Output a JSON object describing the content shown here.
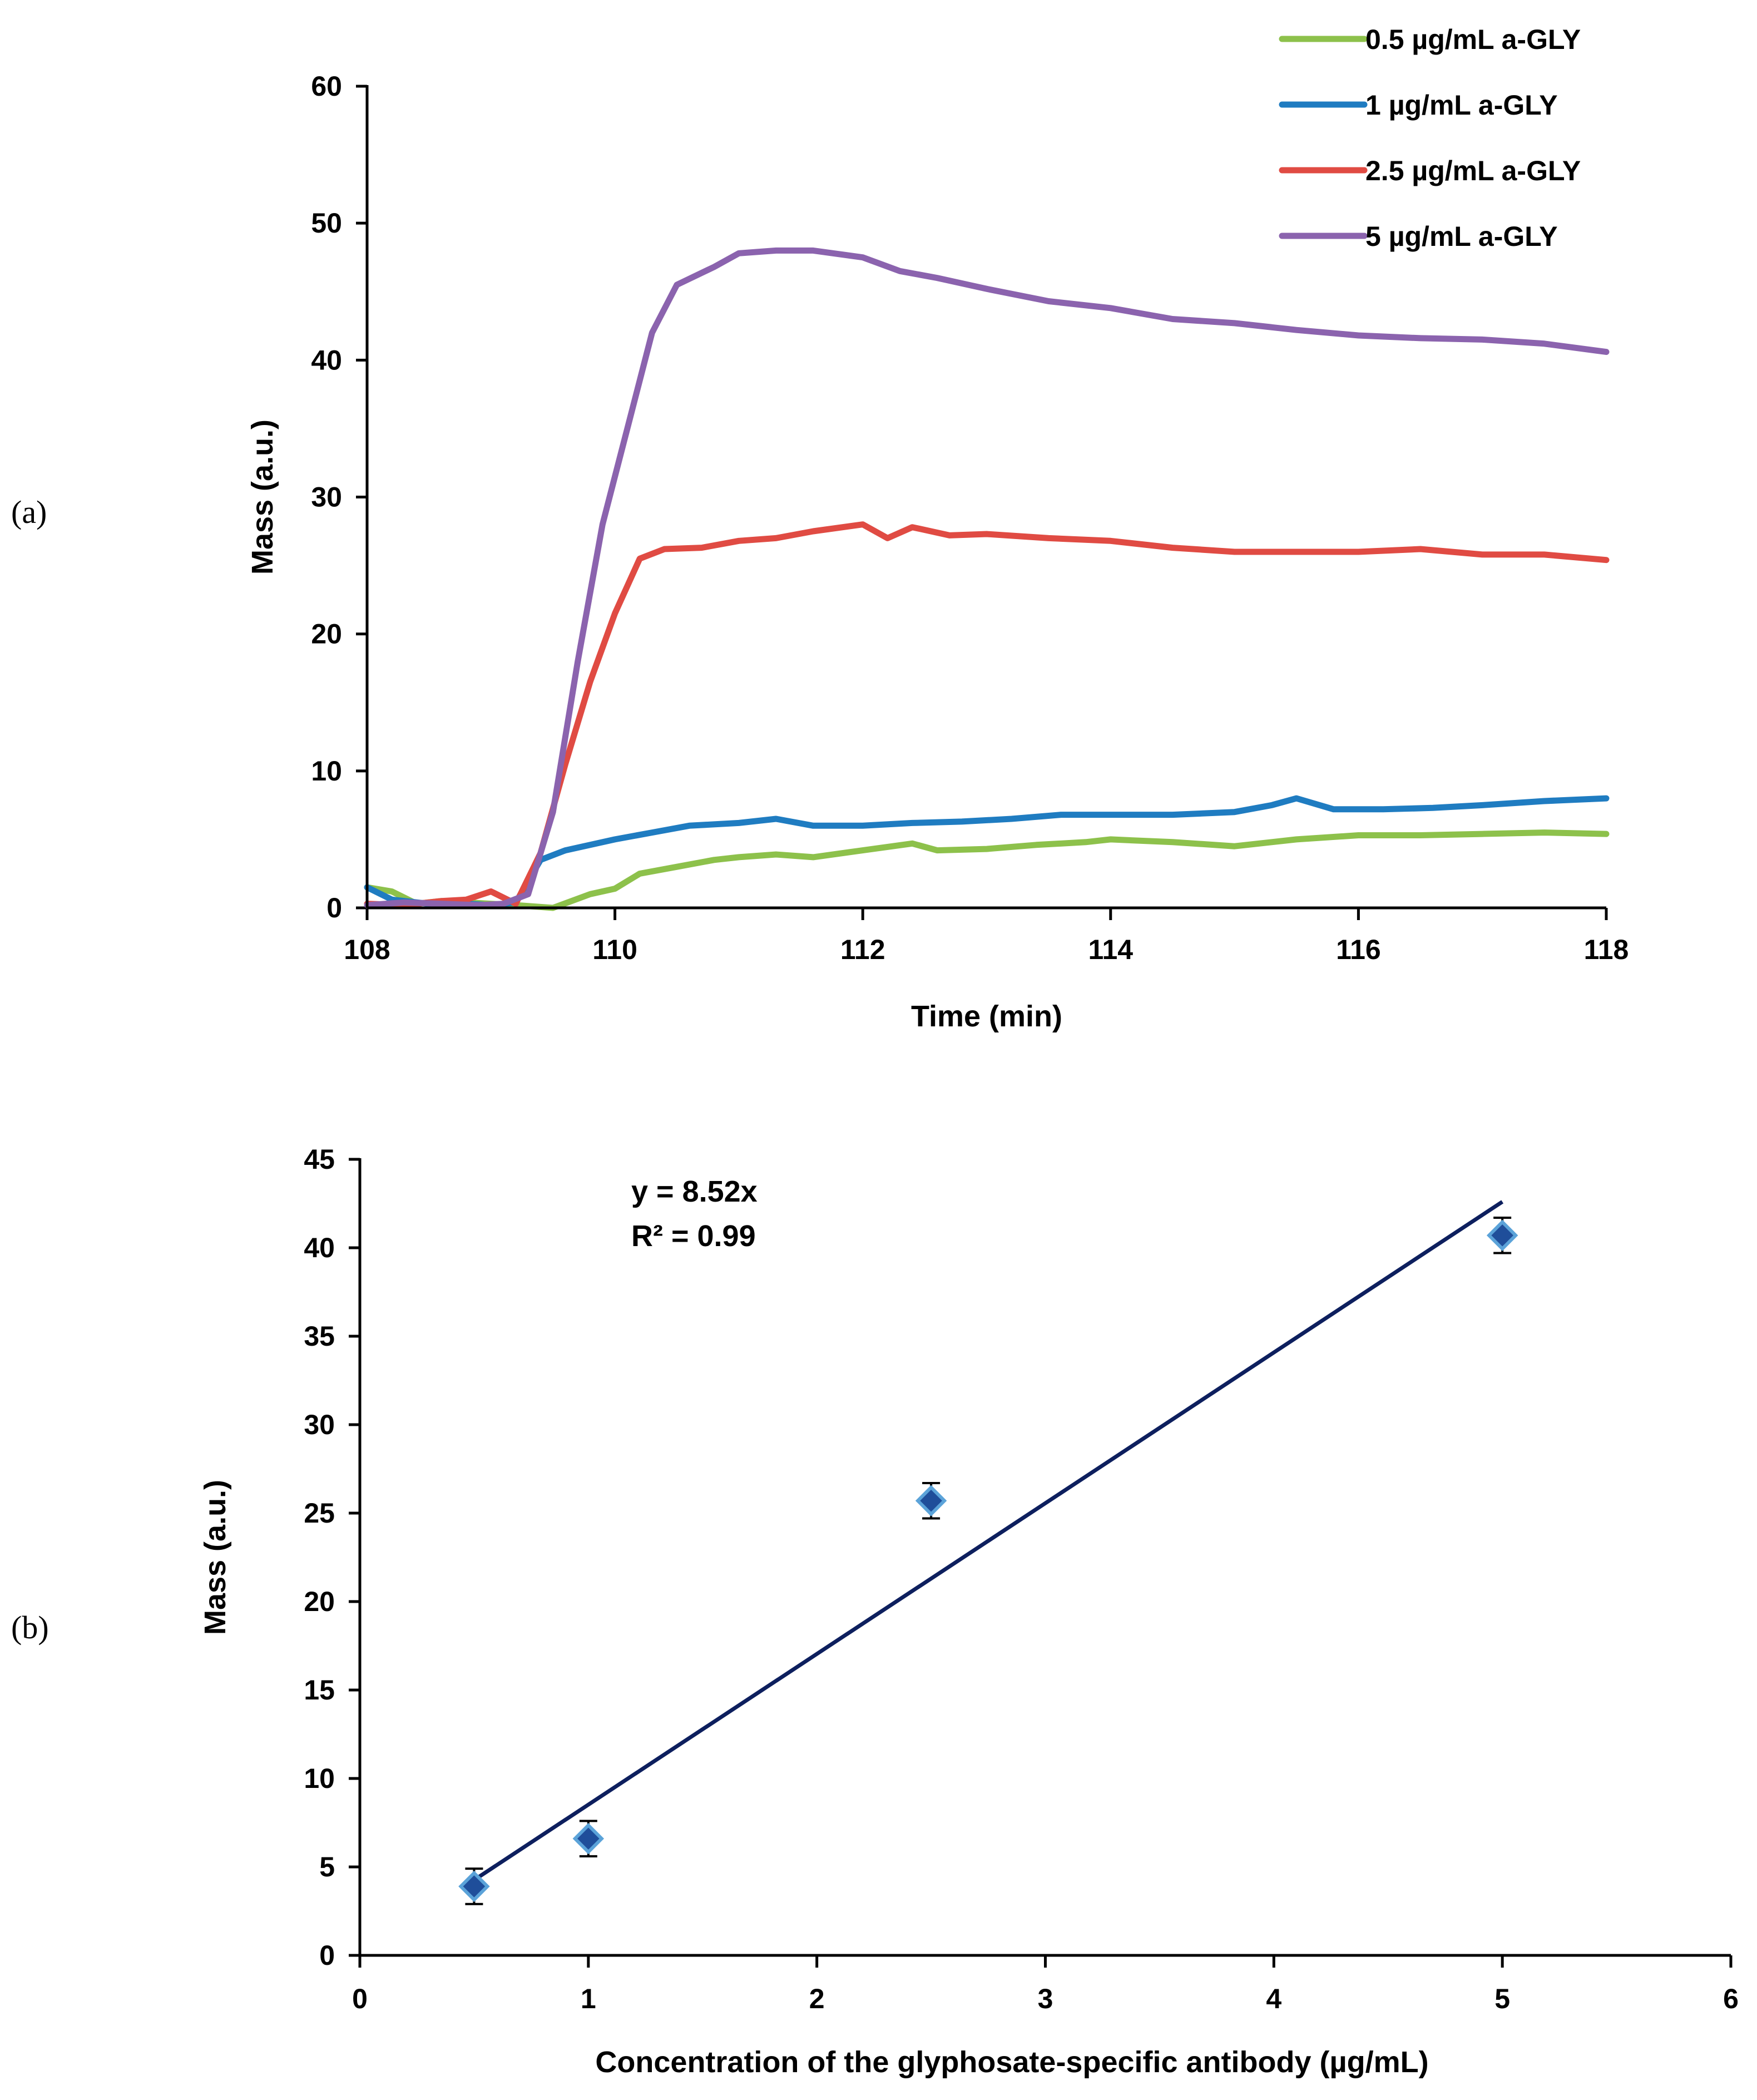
{
  "panel_labels": {
    "a": "(a)",
    "b": "(b)"
  },
  "chart_data": [
    {
      "type": "line",
      "panel": "a",
      "title": "",
      "xlabel": "Time (min)",
      "ylabel": "Mass (a.u.)",
      "xlim": [
        108,
        118
      ],
      "ylim": [
        0,
        60
      ],
      "xticks": [
        108,
        110,
        112,
        114,
        116,
        118
      ],
      "yticks": [
        0,
        10,
        20,
        30,
        40,
        50,
        60
      ],
      "xtick_labels": [
        "108",
        "110",
        "112",
        "114",
        "116",
        "118"
      ],
      "ytick_labels": [
        "0",
        "10",
        "20",
        "30",
        "40",
        "50",
        "60"
      ],
      "legend_position": "top-right",
      "series": [
        {
          "name": "0.5 µg/mL a-GLY",
          "color": "#8DC14B",
          "x": [
            108.0,
            108.2,
            108.4,
            108.6,
            108.8,
            109.0,
            109.2,
            109.5,
            109.8,
            110.0,
            110.2,
            110.5,
            110.8,
            111.0,
            111.3,
            111.6,
            112.0,
            112.4,
            112.6,
            113.0,
            113.4,
            113.8,
            114.0,
            114.5,
            115.0,
            115.5,
            116.0,
            116.5,
            117.0,
            117.5,
            118.0
          ],
          "y": [
            1.5,
            1.2,
            0.3,
            0.5,
            0.4,
            0.3,
            0.2,
            0.0,
            1.0,
            1.4,
            2.5,
            3.0,
            3.5,
            3.7,
            3.9,
            3.7,
            4.2,
            4.7,
            4.2,
            4.3,
            4.6,
            4.8,
            5.0,
            4.8,
            4.5,
            5.0,
            5.3,
            5.3,
            5.4,
            5.5,
            5.4
          ]
        },
        {
          "name": "1 µg/mL a-GLY",
          "color": "#1F7CC1",
          "x": [
            108.0,
            108.2,
            108.4,
            108.6,
            108.8,
            109.0,
            109.2,
            109.4,
            109.6,
            110.0,
            110.3,
            110.6,
            111.0,
            111.3,
            111.6,
            112.0,
            112.4,
            112.8,
            113.2,
            113.6,
            114.0,
            114.5,
            115.0,
            115.3,
            115.5,
            115.8,
            116.2,
            116.6,
            117.0,
            117.5,
            118.0
          ],
          "y": [
            1.5,
            0.6,
            0.4,
            0.2,
            0.3,
            0.2,
            0.4,
            3.5,
            4.2,
            5.0,
            5.5,
            6.0,
            6.2,
            6.5,
            6.0,
            6.0,
            6.2,
            6.3,
            6.5,
            6.8,
            6.8,
            6.8,
            7.0,
            7.5,
            8.0,
            7.2,
            7.2,
            7.3,
            7.5,
            7.8,
            8.0
          ]
        },
        {
          "name": "2.5 µg/mL a-GLY",
          "color": "#E04B43",
          "x": [
            108.0,
            108.3,
            108.6,
            108.8,
            109.0,
            109.2,
            109.4,
            109.6,
            109.8,
            110.0,
            110.2,
            110.4,
            110.7,
            111.0,
            111.3,
            111.6,
            112.0,
            112.2,
            112.4,
            112.7,
            113.0,
            113.5,
            114.0,
            114.5,
            115.0,
            115.5,
            116.0,
            116.5,
            117.0,
            117.5,
            118.0
          ],
          "y": [
            0.3,
            0.2,
            0.5,
            0.6,
            1.2,
            0.3,
            4.0,
            10.5,
            16.5,
            21.5,
            25.5,
            26.2,
            26.3,
            26.8,
            27.0,
            27.5,
            28.0,
            27.0,
            27.8,
            27.2,
            27.3,
            27.0,
            26.8,
            26.3,
            26.0,
            26.0,
            26.0,
            26.2,
            25.8,
            25.8,
            25.4
          ]
        },
        {
          "name": "5 µg/mL a-GLY",
          "color": "#8B63AE",
          "x": [
            108.0,
            108.3,
            108.6,
            108.9,
            109.1,
            109.3,
            109.5,
            109.7,
            109.9,
            110.1,
            110.3,
            110.5,
            110.8,
            111.0,
            111.3,
            111.6,
            112.0,
            112.3,
            112.6,
            113.0,
            113.5,
            114.0,
            114.5,
            115.0,
            115.5,
            116.0,
            116.5,
            117.0,
            117.5,
            118.0
          ],
          "y": [
            0.2,
            0.4,
            0.3,
            0.2,
            0.3,
            1.0,
            7.0,
            18.0,
            28.0,
            35.0,
            42.0,
            45.5,
            46.8,
            47.8,
            48.0,
            48.0,
            47.5,
            46.5,
            46.0,
            45.2,
            44.3,
            43.8,
            43.0,
            42.7,
            42.2,
            41.8,
            41.6,
            41.5,
            41.2,
            40.6
          ]
        }
      ]
    },
    {
      "type": "scatter",
      "panel": "b",
      "title": "",
      "xlabel": "Concentration of the glyphosate-specific antibody (µg/mL)",
      "ylabel": "Mass (a.u.)",
      "xlim": [
        0,
        6
      ],
      "ylim": [
        0,
        45
      ],
      "xticks": [
        0,
        1,
        2,
        3,
        4,
        5,
        6
      ],
      "yticks": [
        0,
        5,
        10,
        15,
        20,
        25,
        30,
        35,
        40,
        45
      ],
      "xtick_labels": [
        "0",
        "1",
        "2",
        "3",
        "4",
        "5",
        "6"
      ],
      "ytick_labels": [
        "0",
        "5",
        "10",
        "15",
        "20",
        "25",
        "30",
        "35",
        "40",
        "45"
      ],
      "points": {
        "x": [
          0.5,
          1.0,
          2.5,
          5.0
        ],
        "y": [
          3.9,
          6.6,
          25.7,
          40.7
        ],
        "error": [
          1.0,
          1.0,
          1.0,
          1.0
        ],
        "color": "#1F4E9A",
        "edge_color": "#5BA3D9"
      },
      "trendline": {
        "slope": 8.52,
        "x_range": [
          0.5,
          5.0
        ],
        "color": "#0D1F5E",
        "equation": "y = 8.52x",
        "r_squared_label": "R² = 0.99"
      }
    }
  ]
}
